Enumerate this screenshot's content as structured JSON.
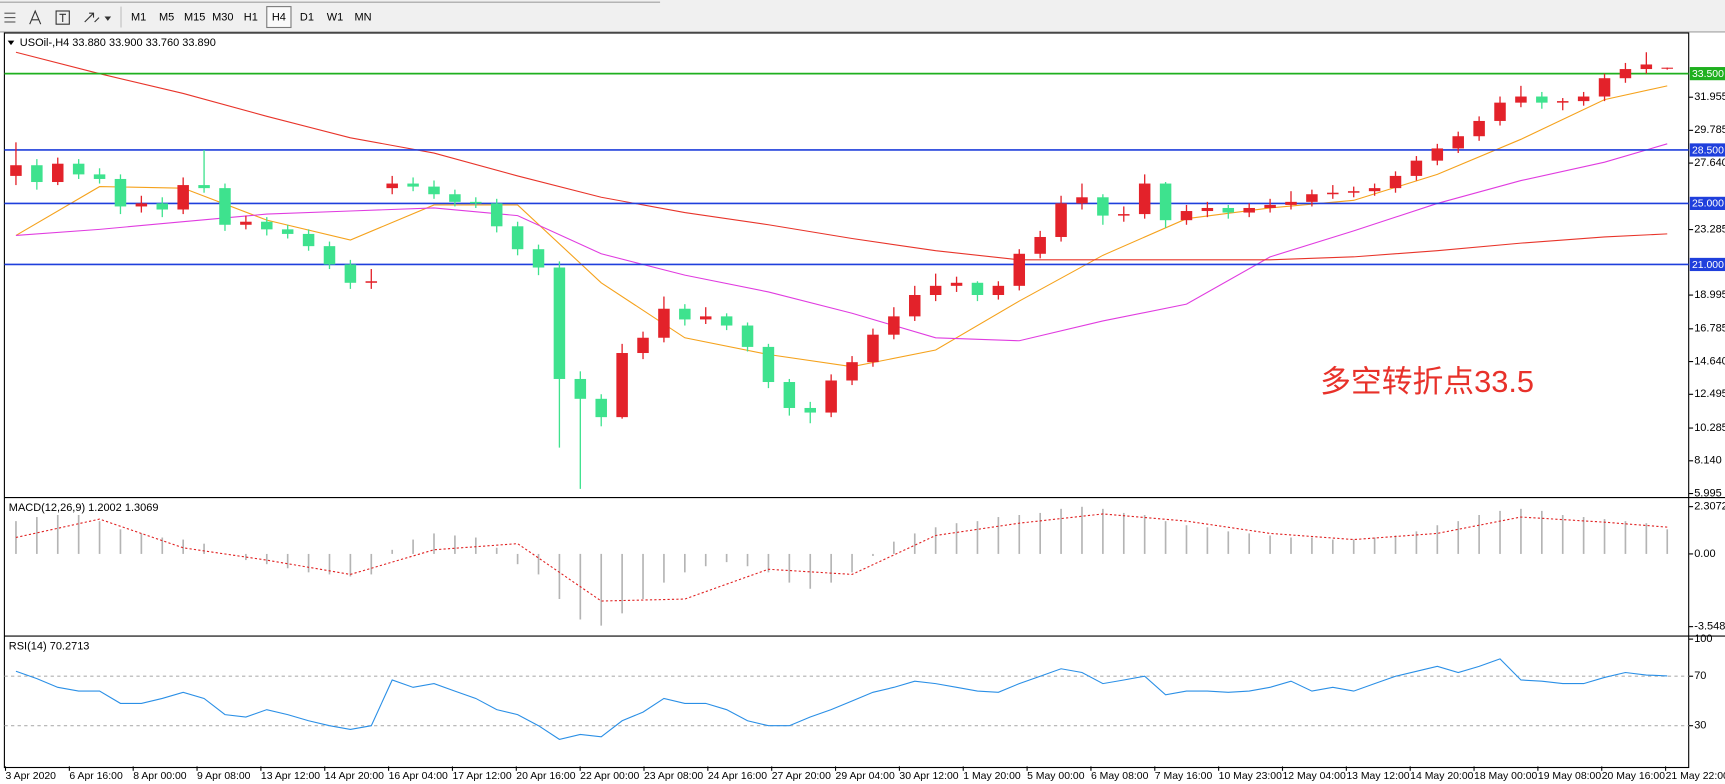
{
  "toolbar": {
    "timeframes": [
      "M1",
      "M5",
      "M15",
      "M30",
      "H1",
      "H4",
      "D1",
      "W1",
      "MN"
    ],
    "active": "H4"
  },
  "chart_data": [
    {
      "type": "candlestick",
      "title": "USOil-,H4  33.880 33.900 33.760 33.890",
      "up_color": "#e3222a",
      "down_color": "#3ee28e",
      "grid": false,
      "ylim": [
        5.84,
        36.09
      ],
      "yticks": [
        31.955,
        29.785,
        {
          "value": 27.64,
          "label": "27.640"
        },
        23.285,
        18.995,
        16.785,
        {
          "value": 14.64,
          "label": "14.640"
        },
        12.495,
        10.285,
        {
          "value": 8.14,
          "label": "8.140"
        },
        5.995
      ],
      "open": [
        26.8,
        27.5,
        26.4,
        27.6,
        26.9,
        26.6,
        24.8,
        25.0,
        24.6,
        26.2,
        26.0,
        23.6,
        23.8,
        23.3,
        23.0,
        22.2,
        21.0,
        19.8,
        26.0,
        26.3,
        26.1,
        25.6,
        25.1,
        25.0,
        23.5,
        22.0,
        20.8,
        13.5,
        12.2,
        11.0,
        15.2,
        16.2,
        18.1,
        17.4,
        17.6,
        17.0,
        15.6,
        13.3,
        11.6,
        11.3,
        13.4,
        14.6,
        16.4,
        17.6,
        19.0,
        19.6,
        19.8,
        19.0,
        19.6,
        21.7,
        22.8,
        25.0,
        25.4,
        24.2,
        24.3,
        26.3,
        23.9,
        24.5,
        24.7,
        24.4,
        24.7,
        24.9,
        25.1,
        25.6,
        25.7,
        25.8,
        26.0,
        26.8,
        27.8,
        28.6,
        29.4,
        30.4,
        31.6,
        32.0,
        31.6,
        31.7,
        32.0,
        33.2,
        33.8,
        33.88
      ],
      "high": [
        29.0,
        27.9,
        28.0,
        27.9,
        27.3,
        26.9,
        25.5,
        25.4,
        26.7,
        28.5,
        26.3,
        24.2,
        24.1,
        23.6,
        23.3,
        22.5,
        21.3,
        20.7,
        26.8,
        26.7,
        26.5,
        25.9,
        25.4,
        25.3,
        23.8,
        22.3,
        21.2,
        14.0,
        12.5,
        15.8,
        16.6,
        18.9,
        18.4,
        18.2,
        17.8,
        17.2,
        15.8,
        13.5,
        12.0,
        13.8,
        15.0,
        16.8,
        18.2,
        19.6,
        20.4,
        20.2,
        19.9,
        19.9,
        22.0,
        23.2,
        25.5,
        26.3,
        25.6,
        24.8,
        26.9,
        26.4,
        24.9,
        25.1,
        24.9,
        25.0,
        25.3,
        25.8,
        25.9,
        26.2,
        26.1,
        26.3,
        27.1,
        28.1,
        28.9,
        29.7,
        30.7,
        32.0,
        32.7,
        32.3,
        31.9,
        32.3,
        33.5,
        34.2,
        34.9,
        33.9
      ],
      "low": [
        26.2,
        25.9,
        26.2,
        26.6,
        26.3,
        24.3,
        24.4,
        24.1,
        24.3,
        25.7,
        23.2,
        23.3,
        22.9,
        22.7,
        21.9,
        20.7,
        19.4,
        19.4,
        25.6,
        25.8,
        25.3,
        24.8,
        24.7,
        23.1,
        21.6,
        20.3,
        9.0,
        6.3,
        10.4,
        10.9,
        14.8,
        15.9,
        17.0,
        17.1,
        16.7,
        15.3,
        12.9,
        11.1,
        10.6,
        11.0,
        13.1,
        14.3,
        16.1,
        17.3,
        18.6,
        19.2,
        18.6,
        18.7,
        19.3,
        21.4,
        22.5,
        24.6,
        23.6,
        23.8,
        24.0,
        23.4,
        23.6,
        24.1,
        24.0,
        24.1,
        24.4,
        24.6,
        24.8,
        25.3,
        25.4,
        25.5,
        25.7,
        26.5,
        27.5,
        28.3,
        29.1,
        30.1,
        31.3,
        31.2,
        31.1,
        31.4,
        31.7,
        32.9,
        33.5,
        33.76
      ],
      "close": [
        27.5,
        26.4,
        27.6,
        26.9,
        26.6,
        24.8,
        25.0,
        24.6,
        26.2,
        26.0,
        23.6,
        23.8,
        23.3,
        23.0,
        22.2,
        21.0,
        19.8,
        19.9,
        26.3,
        26.1,
        25.6,
        25.1,
        25.0,
        23.5,
        22.0,
        20.8,
        13.5,
        12.2,
        11.0,
        15.2,
        16.2,
        18.1,
        17.4,
        17.6,
        17.0,
        15.6,
        13.3,
        11.6,
        11.3,
        13.4,
        14.6,
        16.4,
        17.6,
        19.0,
        19.6,
        19.8,
        19.0,
        19.6,
        21.7,
        22.8,
        25.0,
        25.4,
        24.2,
        24.3,
        26.3,
        23.9,
        24.5,
        24.7,
        24.4,
        24.7,
        24.9,
        25.1,
        25.6,
        25.7,
        25.8,
        26.0,
        26.8,
        27.8,
        28.6,
        29.4,
        30.4,
        31.6,
        32.0,
        31.6,
        31.7,
        32.0,
        33.2,
        33.8,
        34.1,
        33.89
      ],
      "series": [
        {
          "color": "#f5a21c",
          "x": [
            0,
            4,
            8,
            12,
            16,
            20,
            24,
            28,
            32,
            36,
            40,
            44,
            48,
            52,
            56,
            60,
            64,
            68,
            72,
            76,
            79
          ],
          "values": [
            22.9,
            26.1,
            26.0,
            23.9,
            22.6,
            24.9,
            24.9,
            19.8,
            16.2,
            15.1,
            14.3,
            15.4,
            18.6,
            21.6,
            24.0,
            24.7,
            25.2,
            26.9,
            29.2,
            31.8,
            32.7
          ]
        },
        {
          "color": "#e03ce0",
          "x": [
            0,
            4,
            8,
            12,
            16,
            20,
            24,
            28,
            32,
            36,
            40,
            44,
            48,
            52,
            56,
            60,
            64,
            68,
            72,
            76,
            79
          ],
          "values": [
            22.9,
            23.3,
            23.8,
            24.3,
            24.5,
            24.7,
            24.2,
            21.7,
            20.3,
            19.2,
            17.8,
            16.2,
            16.0,
            17.3,
            18.4,
            21.5,
            23.2,
            25.0,
            26.5,
            27.7,
            28.9
          ]
        },
        {
          "color": "#e8342a",
          "x": [
            0,
            4,
            8,
            12,
            16,
            20,
            24,
            28,
            32,
            36,
            40,
            44,
            48,
            52,
            56,
            60,
            64,
            68,
            72,
            76,
            79
          ],
          "values": [
            34.9,
            33.5,
            32.2,
            30.7,
            29.3,
            28.3,
            26.8,
            25.4,
            24.4,
            23.6,
            22.7,
            21.9,
            21.3,
            21.3,
            21.3,
            21.3,
            21.5,
            21.9,
            22.4,
            22.8,
            23.0
          ]
        }
      ],
      "levels": [
        {
          "value": 33.5,
          "label": "33.500",
          "color": "#1fb01f"
        },
        {
          "value": 28.5,
          "label": "28.500",
          "color": "#1f3fdc"
        },
        {
          "value": 25.0,
          "label": "25.000",
          "color": "#1f3fdc"
        },
        {
          "value": 21.0,
          "label": "21.000",
          "color": "#1f3fdc"
        }
      ],
      "annotation": {
        "text": "多空转折点33.5",
        "color": "#e8312a"
      },
      "x_labels": [
        "3 Apr 2020",
        "6 Apr 16:00",
        "8 Apr 00:00",
        "9 Apr 08:00",
        "13 Apr 12:00",
        "14 Apr 20:00",
        "16 Apr 04:00",
        "17 Apr 12:00",
        "20 Apr 16:00",
        "22 Apr 00:00",
        "23 Apr 08:00",
        "24 Apr 16:00",
        "27 Apr 20:00",
        "29 Apr 04:00",
        "30 Apr 12:00",
        "1 May 20:00",
        "5 May 00:00",
        "6 May 08:00",
        "7 May 16:00",
        "10 May 23:00",
        "12 May 04:00",
        "13 May 12:00",
        "14 May 20:00",
        "18 May 00:00",
        "19 May 08:00",
        "20 May 16:00",
        "21 May 22:00"
      ]
    },
    {
      "type": "macd",
      "title": "MACD(12,26,9) 1.2002 1.3069",
      "color": "#b4b4b4",
      "ylim": [
        -3.93,
        2.67
      ],
      "yticks": [
        2.3072,
        {
          "value": 0,
          "label": "0.00"
        },
        -3.5484
      ],
      "values": [
        1.6,
        1.8,
        1.9,
        1.9,
        1.6,
        1.2,
        1.0,
        0.8,
        0.7,
        0.5,
        0.0,
        -0.3,
        -0.5,
        -0.7,
        -0.9,
        -1.0,
        -1.1,
        -1.0,
        0.2,
        0.7,
        1.0,
        0.9,
        0.8,
        0.3,
        -0.5,
        -1.0,
        -2.2,
        -3.2,
        -3.5,
        -2.9,
        -2.2,
        -1.4,
        -0.9,
        -0.6,
        -0.4,
        -0.6,
        -0.9,
        -1.4,
        -1.7,
        -1.4,
        -0.9,
        -0.1,
        0.6,
        1.0,
        1.3,
        1.5,
        1.6,
        1.8,
        1.9,
        2.0,
        2.2,
        2.3,
        2.2,
        2.0,
        1.9,
        1.6,
        1.4,
        1.3,
        1.1,
        1.0,
        0.9,
        0.8,
        0.8,
        0.7,
        0.7,
        0.8,
        0.9,
        1.1,
        1.4,
        1.6,
        1.9,
        2.1,
        2.2,
        2.1,
        1.9,
        1.8,
        1.7,
        1.6,
        1.5,
        1.2002
      ],
      "signal": {
        "color": "#e02020",
        "x": [
          0,
          4,
          8,
          12,
          16,
          20,
          24,
          28,
          32,
          36,
          40,
          44,
          48,
          52,
          56,
          60,
          64,
          68,
          72,
          76,
          79
        ],
        "values": [
          0.8,
          1.7,
          0.3,
          -0.3,
          -1.0,
          0.2,
          0.5,
          -2.3,
          -2.2,
          -0.75,
          -1.0,
          0.9,
          1.5,
          1.95,
          1.6,
          1.0,
          0.7,
          1.0,
          1.8,
          1.55,
          1.3069
        ]
      }
    },
    {
      "type": "line",
      "title": "RSI(14) 70.2713",
      "color": "#2a8fe6",
      "ylim": [
        -2.9,
        101.1
      ],
      "yticks": [
        100,
        70,
        30
      ],
      "levels": [
        70,
        30
      ],
      "values": [
        74,
        68,
        61,
        58,
        58,
        48,
        48,
        52,
        57,
        52,
        39,
        37,
        43,
        39,
        34,
        30,
        27,
        30,
        67,
        61,
        64,
        58,
        52,
        43,
        39,
        30,
        19,
        23,
        21,
        34,
        41,
        52,
        48,
        48,
        43,
        34,
        30,
        30,
        37,
        43,
        50,
        57,
        61,
        66,
        64,
        61,
        58,
        57,
        64,
        70,
        76,
        73,
        64,
        67,
        70,
        55,
        58,
        58,
        57,
        58,
        61,
        66,
        58,
        61,
        58,
        64,
        70,
        74,
        78,
        73,
        78,
        84,
        67,
        66,
        64,
        64,
        69,
        73,
        71,
        70.2713
      ]
    }
  ]
}
